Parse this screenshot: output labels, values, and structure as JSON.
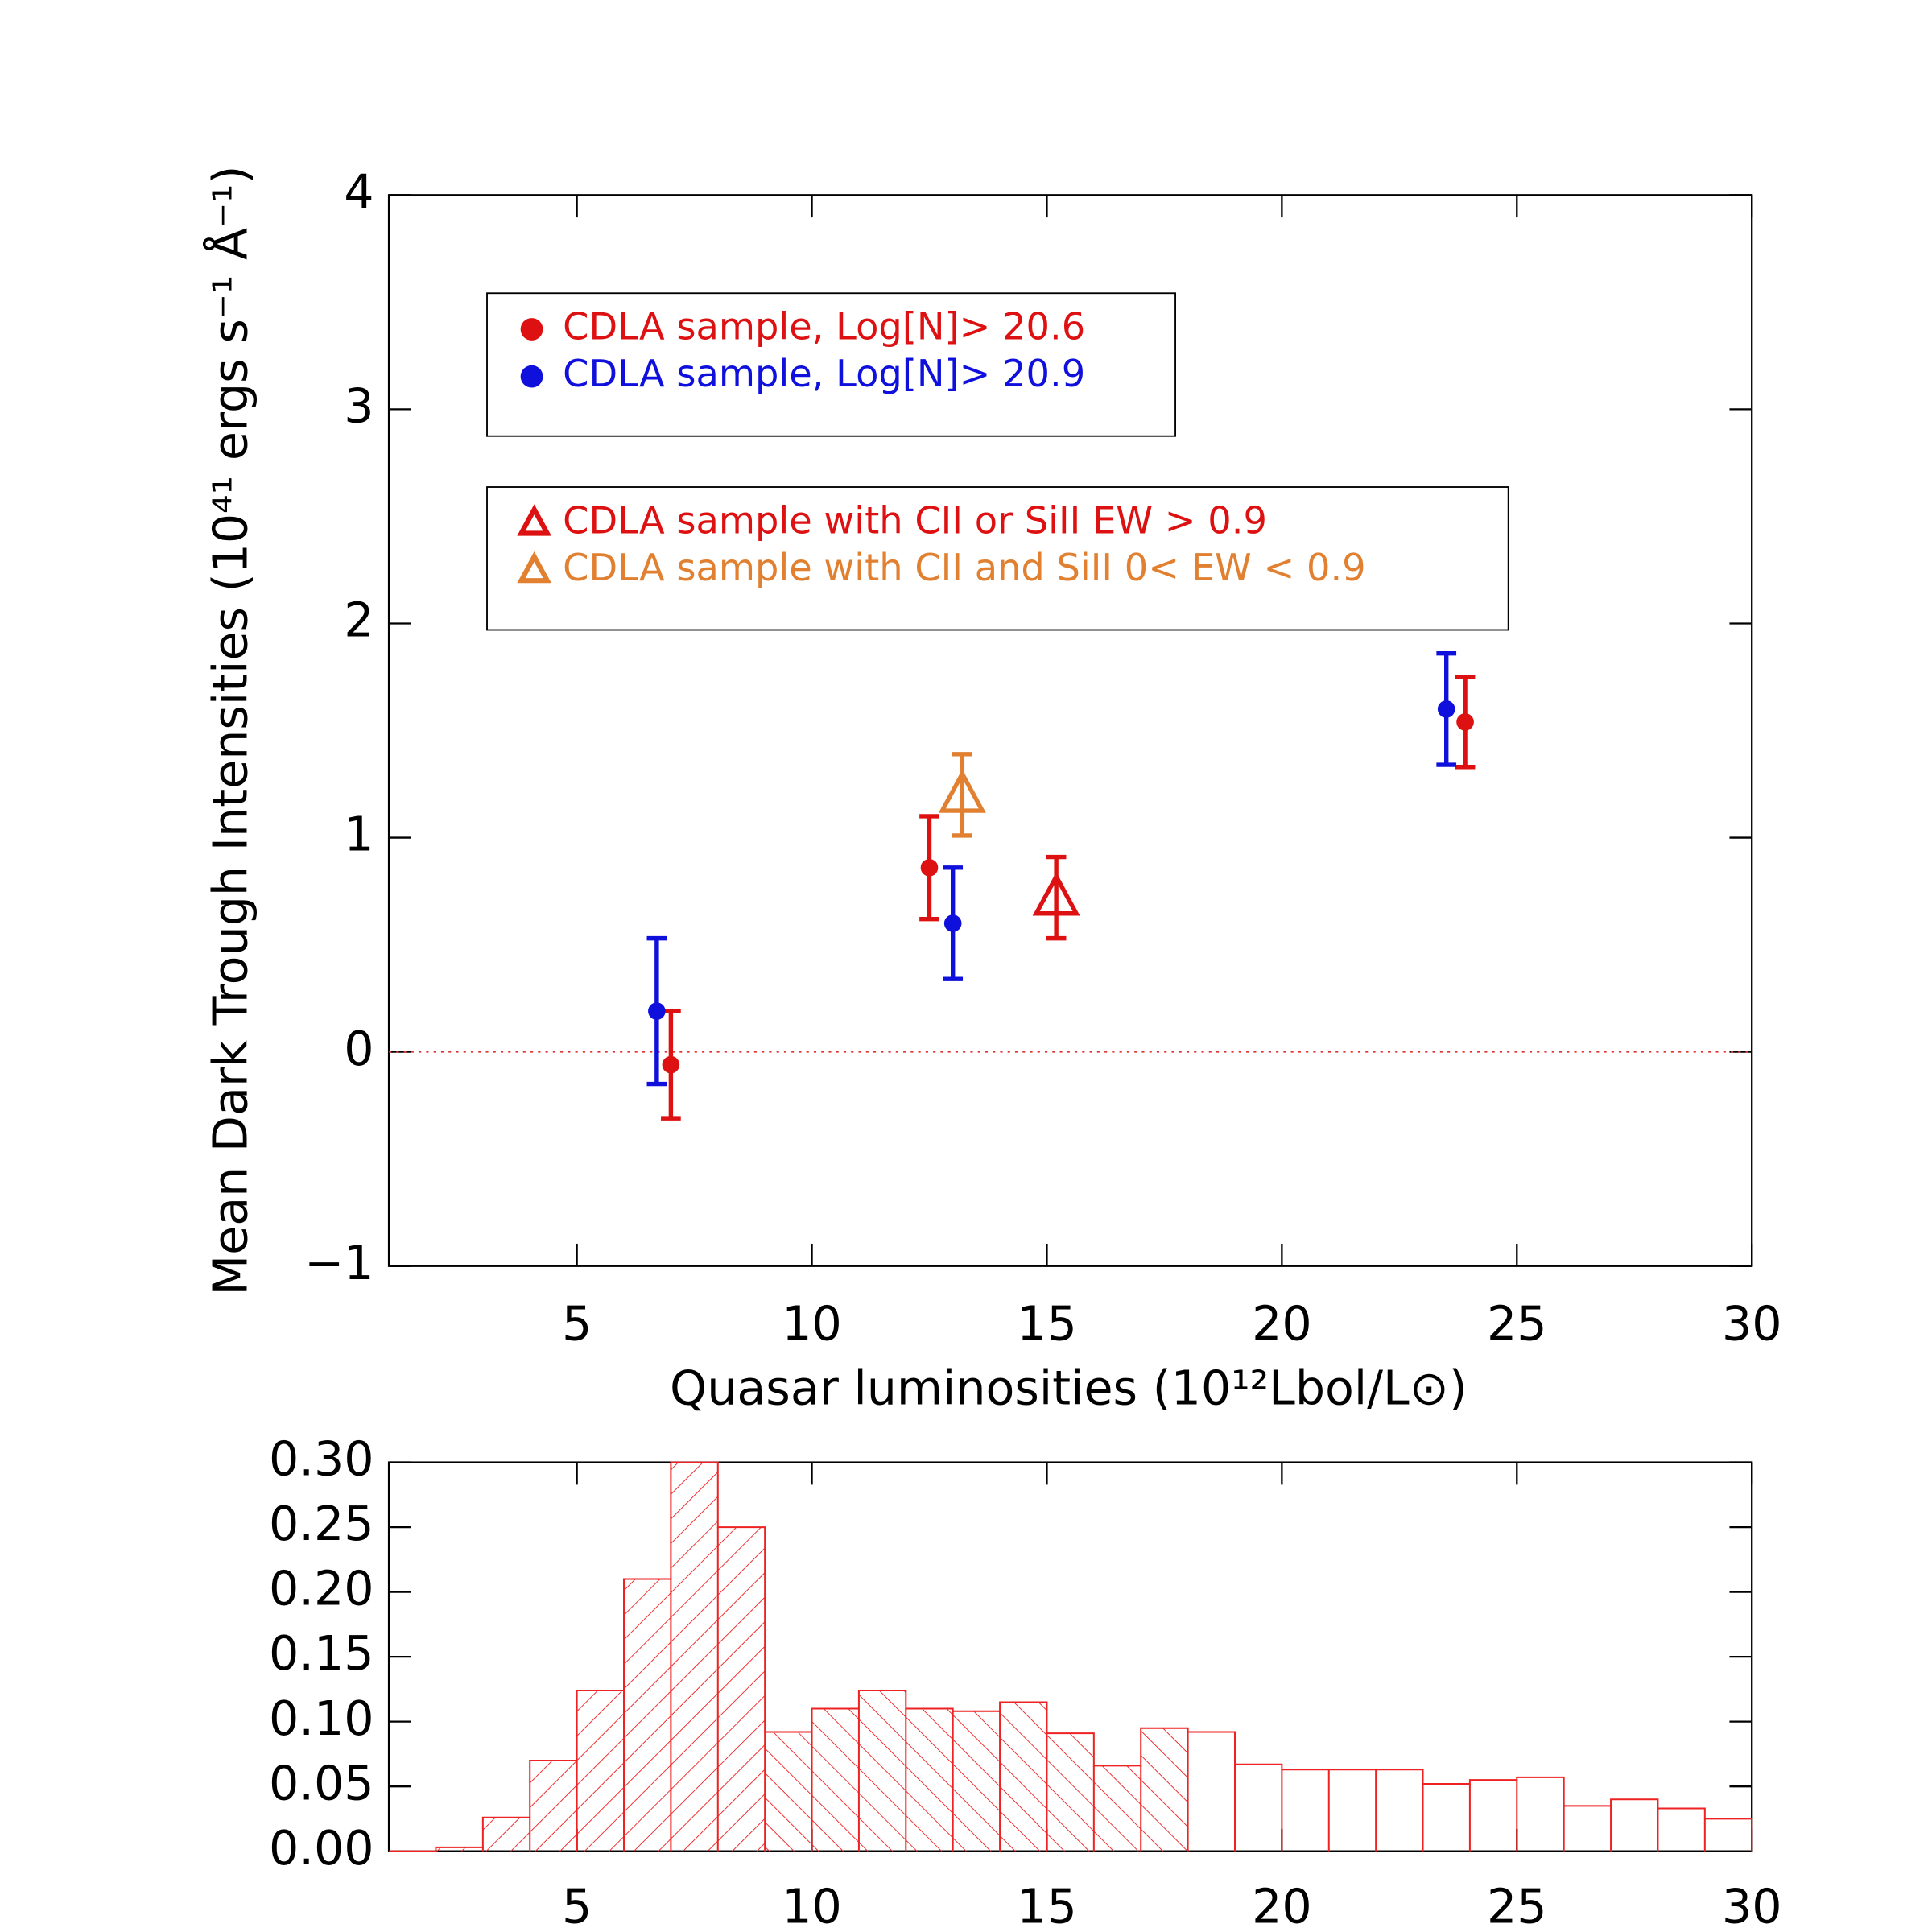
{
  "chart_data": [
    {
      "type": "scatter",
      "xlabel": "Quasar luminosities (10¹²Lbol/L⊙)",
      "ylabel": "Mean Dark Trough Intensities (10⁴¹ ergs s⁻¹ Å⁻¹)",
      "xlim": [
        1,
        30
      ],
      "xticks": [
        5,
        10,
        15,
        20,
        25,
        30
      ],
      "ylim": [
        -1,
        4
      ],
      "yticks": [
        {
          "value": -1,
          "label": "−1"
        },
        0,
        1,
        2,
        3,
        4
      ],
      "hline": 0,
      "hline_color": "#e03030",
      "series": [
        {
          "name": "CDLA sample, Log[N]> 20.6",
          "color": "#dd1111",
          "marker": "circle",
          "x": [
            7.0,
            12.5,
            23.9
          ],
          "y": [
            -0.06,
            0.86,
            1.54
          ],
          "err": [
            0.25,
            0.24,
            0.21
          ]
        },
        {
          "name": "CDLA sample, Log[N]> 20.9",
          "color": "#1010dd",
          "marker": "circle",
          "x": [
            6.7,
            13.0,
            23.5
          ],
          "y": [
            0.19,
            0.6,
            1.6
          ],
          "err": [
            0.34,
            0.26,
            0.26
          ]
        },
        {
          "name": "CDLA sample with CII or SiII EW > 0.9",
          "color": "#dd1111",
          "marker": "triangle",
          "x": [
            15.2
          ],
          "y": [
            0.72
          ],
          "err": [
            0.19
          ]
        },
        {
          "name": "CDLA sample with CII and SiII 0< EW < 0.9",
          "color": "#e08030",
          "marker": "triangle",
          "x": [
            13.2
          ],
          "y": [
            1.2
          ],
          "err": [
            0.19
          ]
        }
      ]
    },
    {
      "type": "histogram",
      "color": "#ee2222",
      "bins": [
        1,
        2,
        3,
        4,
        5,
        6,
        7,
        8,
        9,
        10,
        11,
        12,
        13,
        14,
        15,
        16,
        17,
        18,
        19,
        20,
        21,
        22,
        23,
        24,
        25,
        26,
        27,
        28,
        29,
        30
      ],
      "counts": [
        0.0,
        0.003,
        0.026,
        0.07,
        0.124,
        0.21,
        0.3,
        0.25,
        0.092,
        0.11,
        0.124,
        0.11,
        0.108,
        0.115,
        0.091,
        0.066,
        0.095,
        0.092,
        0.067,
        0.063,
        0.063,
        0.063,
        0.052,
        0.055,
        0.057,
        0.035,
        0.04,
        0.033,
        0.025
      ],
      "hatch": [
        "/",
        "/",
        "/",
        "/",
        "/",
        "/",
        "/",
        "/",
        "\\",
        "\\",
        "\\",
        "\\",
        "\\",
        "\\",
        "\\",
        "\\",
        "\\",
        "none",
        "none",
        "none",
        "none",
        "none",
        "none",
        "none",
        "none",
        "none",
        "none",
        "none",
        "none"
      ],
      "xlim": [
        1,
        30
      ],
      "xticks": [
        5,
        10,
        15,
        20,
        25,
        30
      ],
      "ylim": [
        0,
        0.3
      ],
      "yticks": [
        {
          "value": 0,
          "label": "0.00"
        },
        {
          "value": 0.05,
          "label": "0.05"
        },
        {
          "value": 0.1,
          "label": "0.10"
        },
        {
          "value": 0.15,
          "label": "0.15"
        },
        {
          "value": 0.2,
          "label": "0.20"
        },
        {
          "value": 0.25,
          "label": "0.25"
        },
        {
          "value": 0.3,
          "label": "0.30"
        }
      ]
    }
  ]
}
